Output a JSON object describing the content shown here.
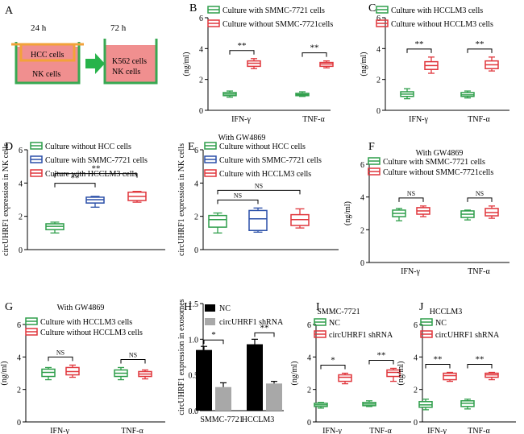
{
  "colors": {
    "green": "#2e9e4a",
    "blue": "#2a4fa8",
    "red": "#e0363c",
    "black": "#000000",
    "gray": "#a8a8a8",
    "orange": "#f2a23a",
    "pink": "#f08f8f",
    "arrow": "#27b34a",
    "dish": "#37a852"
  },
  "schematic": {
    "letter": "A",
    "t1": "24 h",
    "t2": "72 h",
    "hcc": "HCC cells",
    "nk": "NK cells",
    "k562": "K562 cells",
    "nk2": "NK cells"
  },
  "chart_data": [
    {
      "panel": "B",
      "type": "box",
      "ylabel": "(ng/ml)",
      "ylim": [
        0,
        6
      ],
      "yticks": [
        "0",
        "2",
        "4",
        "6"
      ],
      "categories": [
        "IFN-γ",
        "TNF-α"
      ],
      "legend": [
        "Culture with SMMC-7721 cells",
        "Culture without SMMC-7721cells"
      ],
      "series": [
        {
          "name": "Culture with SMMC-7721 cells",
          "color": "green",
          "boxes": [
            [
              0.85,
              0.95,
              1.05,
              1.15,
              1.25
            ],
            [
              0.9,
              0.95,
              1.02,
              1.1,
              1.2
            ]
          ]
        },
        {
          "name": "Culture without SMMC-7721cells",
          "color": "red",
          "boxes": [
            [
              2.7,
              2.85,
              3.05,
              3.2,
              3.35
            ],
            [
              2.75,
              2.85,
              3.0,
              3.1,
              3.2
            ]
          ]
        }
      ],
      "sig": [
        {
          "cat": 0,
          "label": "**"
        },
        {
          "cat": 1,
          "label": "**"
        }
      ]
    },
    {
      "panel": "C",
      "type": "box",
      "ylabel": "(ng/ml)",
      "ylim": [
        0,
        6
      ],
      "yticks": [
        "0",
        "2",
        "4",
        "6"
      ],
      "categories": [
        "IFN-γ",
        "TNF-α"
      ],
      "legend": [
        "Culture with HCCLM3 cells",
        "Culture without HCCLM3 cells"
      ],
      "series": [
        {
          "name": "Culture with HCCLM3 cells",
          "color": "green",
          "boxes": [
            [
              0.75,
              0.9,
              1.05,
              1.2,
              1.4
            ],
            [
              0.8,
              0.9,
              1.0,
              1.15,
              1.25
            ]
          ]
        },
        {
          "name": "Culture without HCCLM3 cells",
          "color": "red",
          "boxes": [
            [
              2.4,
              2.65,
              2.9,
              3.15,
              3.45
            ],
            [
              2.55,
              2.7,
              2.95,
              3.2,
              3.45
            ]
          ]
        }
      ],
      "sig": [
        {
          "cat": 0,
          "label": "**"
        },
        {
          "cat": 1,
          "label": "**"
        }
      ]
    },
    {
      "panel": "D",
      "type": "box",
      "ylabel": "circUHRF1 expression in NK cells",
      "ylim": [
        0,
        6
      ],
      "yticks": [
        "0",
        "2",
        "4",
        "6"
      ],
      "categories": [
        "",
        "",
        ""
      ],
      "legend": [
        "Culture without HCC cells",
        "Culture with SMMC-7721 cells",
        "Culture with HCCLM3 cells"
      ],
      "series": [
        {
          "name": "Culture without HCC cells",
          "color": "green",
          "boxes": [
            [
              1.0,
              1.2,
              1.4,
              1.55,
              1.65
            ]
          ]
        },
        {
          "name": "Culture with SMMC-7721 cells",
          "color": "blue",
          "boxes": [
            [
              2.55,
              2.8,
              3.0,
              3.15,
              3.2
            ]
          ]
        },
        {
          "name": "Culture with HCCLM3 cells",
          "color": "red",
          "boxes": [
            [
              2.85,
              2.95,
              3.2,
              3.45,
              3.5
            ]
          ]
        }
      ],
      "sig": [
        {
          "pair": [
            0,
            1
          ],
          "label": "**"
        },
        {
          "pair": [
            0,
            2
          ],
          "label": "**"
        }
      ]
    },
    {
      "panel": "E",
      "type": "box",
      "title": "With GW4869",
      "ylabel": "circUHRF1 expression in NK cells",
      "ylim": [
        0,
        6
      ],
      "yticks": [
        "0",
        "2",
        "4",
        "6"
      ],
      "categories": [
        "",
        "",
        ""
      ],
      "legend": [
        "Culture without HCC cells",
        "Culture with SMMC-7721 cells",
        "Culture with HCCLM3 cells"
      ],
      "series": [
        {
          "name": "Culture without HCC cells",
          "color": "green",
          "boxes": [
            [
              1.0,
              1.35,
              1.8,
              2.05,
              2.2
            ]
          ]
        },
        {
          "name": "Culture with SMMC-7721 cells",
          "color": "blue",
          "boxes": [
            [
              1.05,
              1.15,
              1.85,
              2.35,
              2.5
            ]
          ]
        },
        {
          "name": "Culture with HCCLM3 cells",
          "color": "red",
          "boxes": [
            [
              1.3,
              1.45,
              1.8,
              2.1,
              2.45
            ]
          ]
        }
      ],
      "sig": [
        {
          "pair": [
            0,
            1
          ],
          "label": "NS"
        },
        {
          "pair": [
            0,
            2
          ],
          "label": "NS"
        }
      ]
    },
    {
      "panel": "F",
      "type": "box",
      "title": "With GW4869",
      "ylabel": "(ng/ml)",
      "ylim": [
        0,
        6
      ],
      "yticks": [
        "0",
        "2",
        "4",
        "6"
      ],
      "categories": [
        "IFN-γ",
        "TNF-α"
      ],
      "legend": [
        "Culture with SMMC-7721 cells",
        "Culture without SMMC-7721cells"
      ],
      "series": [
        {
          "name": "Culture with SMMC-7721 cells",
          "color": "green",
          "boxes": [
            [
              2.55,
              2.8,
              3.0,
              3.2,
              3.3
            ],
            [
              2.6,
              2.75,
              2.95,
              3.15,
              3.2
            ]
          ]
        },
        {
          "name": "Culture without SMMC-7721cells",
          "color": "red",
          "boxes": [
            [
              2.8,
              2.95,
              3.15,
              3.35,
              3.45
            ],
            [
              2.7,
              2.85,
              3.05,
              3.3,
              3.45
            ]
          ]
        }
      ],
      "sig": [
        {
          "cat": 0,
          "label": "NS"
        },
        {
          "cat": 1,
          "label": "NS"
        }
      ]
    },
    {
      "panel": "G",
      "type": "box",
      "title": "With GW4869",
      "ylabel": "(ng/ml)",
      "ylim": [
        0,
        6
      ],
      "yticks": [
        "0",
        "2",
        "4",
        "6"
      ],
      "categories": [
        "IFN-γ",
        "TNF-α"
      ],
      "legend": [
        "Culture with HCCLM3 cells",
        "Culture without HCCLM3 cells"
      ],
      "series": [
        {
          "name": "Culture with HCCLM3 cells",
          "color": "green",
          "boxes": [
            [
              2.6,
              2.8,
              3.05,
              3.25,
              3.35
            ],
            [
              2.6,
              2.8,
              3.0,
              3.2,
              3.35
            ]
          ]
        },
        {
          "name": "Culture without HCCLM3 cells",
          "color": "red",
          "boxes": [
            [
              2.75,
              2.9,
              3.1,
              3.35,
              3.5
            ],
            [
              2.65,
              2.8,
              2.95,
              3.1,
              3.2
            ]
          ]
        }
      ],
      "sig": [
        {
          "cat": 0,
          "label": "NS"
        },
        {
          "cat": 1,
          "label": "NS"
        }
      ]
    },
    {
      "panel": "H",
      "type": "bar",
      "ylabel": "circUHRF1 expression in exosomes",
      "ylim": [
        0,
        1.5
      ],
      "yticks": [
        "0.0",
        "0.5",
        "1.0",
        "1.5"
      ],
      "categories": [
        "SMMC-7721",
        "HCCLM3"
      ],
      "legend": [
        "NC",
        "circUHRF1 shRNA"
      ],
      "series": [
        {
          "name": "NC",
          "color": "black",
          "values": [
            0.85,
            0.93
          ],
          "err": [
            0.05,
            0.07
          ]
        },
        {
          "name": "circUHRF1 shRNA",
          "color": "gray",
          "values": [
            0.33,
            0.38
          ],
          "err": [
            0.06,
            0.03
          ]
        }
      ],
      "sig": [
        {
          "cat": 0,
          "label": "*"
        },
        {
          "cat": 1,
          "label": "**"
        }
      ]
    },
    {
      "panel": "I",
      "type": "box",
      "title": "SMMC-7721",
      "ylabel": "(ng/ml)",
      "ylim": [
        0,
        6
      ],
      "yticks": [
        "0",
        "2",
        "4",
        "6"
      ],
      "categories": [
        "IFN-γ",
        "TNF-α"
      ],
      "legend": [
        "NC",
        "circUHRF1 shRNA"
      ],
      "series": [
        {
          "name": "NC",
          "color": "green",
          "boxes": [
            [
              0.85,
              0.95,
              1.05,
              1.15,
              1.2
            ],
            [
              0.95,
              1.0,
              1.1,
              1.2,
              1.3
            ]
          ]
        },
        {
          "name": "circUHRF1 shRNA",
          "color": "red",
          "boxes": [
            [
              2.35,
              2.5,
              2.75,
              2.9,
              3.0
            ],
            [
              2.5,
              2.8,
              3.05,
              3.2,
              3.3
            ]
          ]
        }
      ],
      "sig": [
        {
          "cat": 0,
          "label": "*"
        },
        {
          "cat": 1,
          "label": "**"
        }
      ]
    },
    {
      "panel": "J",
      "type": "box",
      "title": "HCCLM3",
      "ylabel": "(ng/ml)",
      "ylim": [
        0,
        6
      ],
      "yticks": [
        "0",
        "2",
        "4",
        "6"
      ],
      "categories": [
        "IFN-γ",
        "TNF-α"
      ],
      "legend": [
        "NC",
        "circUHRF1 shRNA"
      ],
      "series": [
        {
          "name": "NC",
          "color": "green",
          "boxes": [
            [
              0.75,
              0.9,
              1.05,
              1.25,
              1.4
            ],
            [
              0.8,
              0.95,
              1.15,
              1.3,
              1.4
            ]
          ]
        },
        {
          "name": "circUHRF1 shRNA",
          "color": "red",
          "boxes": [
            [
              2.5,
              2.6,
              2.85,
              3.0,
              3.05
            ],
            [
              2.6,
              2.75,
              2.9,
              3.0,
              3.05
            ]
          ]
        }
      ],
      "sig": [
        {
          "cat": 0,
          "label": "**"
        },
        {
          "cat": 1,
          "label": "**"
        }
      ]
    }
  ]
}
